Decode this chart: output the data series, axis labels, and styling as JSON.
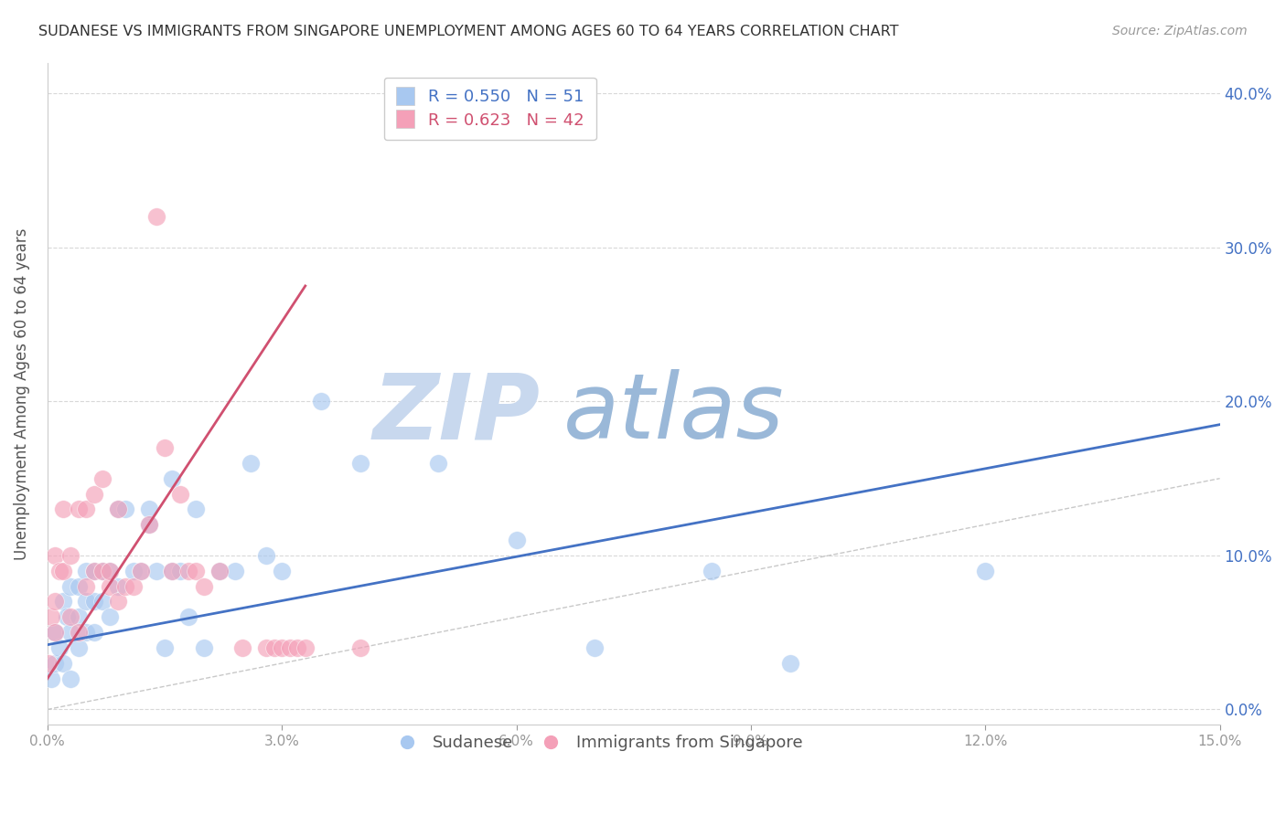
{
  "title": "SUDANESE VS IMMIGRANTS FROM SINGAPORE UNEMPLOYMENT AMONG AGES 60 TO 64 YEARS CORRELATION CHART",
  "source": "Source: ZipAtlas.com",
  "ylabel": "Unemployment Among Ages 60 to 64 years",
  "xlim": [
    0.0,
    0.15
  ],
  "ylim": [
    -0.01,
    0.42
  ],
  "xticks": [
    0.0,
    0.03,
    0.06,
    0.09,
    0.12,
    0.15
  ],
  "xticklabels": [
    "0.0%",
    "3.0%",
    "6.0%",
    "9.0%",
    "12.0%",
    "15.0%"
  ],
  "yticks": [
    0.0,
    0.1,
    0.2,
    0.3,
    0.4
  ],
  "yticklabels": [
    "0.0%",
    "10.0%",
    "20.0%",
    "30.0%",
    "40.0%"
  ],
  "blue_R": 0.55,
  "blue_N": 51,
  "pink_R": 0.623,
  "pink_N": 42,
  "blue_color": "#a8c8f0",
  "pink_color": "#f4a0b8",
  "blue_line_color": "#4472c4",
  "pink_line_color": "#d05070",
  "grid_color": "#d8d8d8",
  "watermark_ZIP": "ZIP",
  "watermark_atlas": "atlas",
  "watermark_color_ZIP": "#c8d8ee",
  "watermark_color_atlas": "#9ab8d8",
  "blue_scatter_x": [
    0.0005,
    0.001,
    0.001,
    0.0015,
    0.002,
    0.002,
    0.0025,
    0.003,
    0.003,
    0.003,
    0.004,
    0.004,
    0.004,
    0.005,
    0.005,
    0.005,
    0.006,
    0.006,
    0.006,
    0.007,
    0.007,
    0.008,
    0.008,
    0.009,
    0.009,
    0.01,
    0.011,
    0.012,
    0.013,
    0.014,
    0.015,
    0.016,
    0.017,
    0.018,
    0.019,
    0.02,
    0.022,
    0.024,
    0.026,
    0.028,
    0.03,
    0.035,
    0.04,
    0.05,
    0.06,
    0.07,
    0.085,
    0.095,
    0.12,
    0.016,
    0.013
  ],
  "blue_scatter_y": [
    0.02,
    0.03,
    0.05,
    0.04,
    0.03,
    0.07,
    0.06,
    0.02,
    0.05,
    0.08,
    0.04,
    0.06,
    0.08,
    0.05,
    0.07,
    0.09,
    0.05,
    0.07,
    0.09,
    0.07,
    0.09,
    0.06,
    0.09,
    0.08,
    0.13,
    0.13,
    0.09,
    0.09,
    0.12,
    0.09,
    0.04,
    0.09,
    0.09,
    0.06,
    0.13,
    0.04,
    0.09,
    0.09,
    0.16,
    0.1,
    0.09,
    0.2,
    0.16,
    0.16,
    0.11,
    0.04,
    0.09,
    0.03,
    0.09,
    0.15,
    0.13
  ],
  "pink_scatter_x": [
    0.0002,
    0.0005,
    0.001,
    0.001,
    0.001,
    0.0015,
    0.002,
    0.002,
    0.003,
    0.003,
    0.004,
    0.004,
    0.005,
    0.005,
    0.006,
    0.006,
    0.007,
    0.007,
    0.008,
    0.008,
    0.009,
    0.009,
    0.01,
    0.011,
    0.012,
    0.013,
    0.014,
    0.015,
    0.016,
    0.017,
    0.018,
    0.019,
    0.02,
    0.022,
    0.025,
    0.028,
    0.029,
    0.03,
    0.031,
    0.032,
    0.033,
    0.04
  ],
  "pink_scatter_y": [
    0.03,
    0.06,
    0.05,
    0.07,
    0.1,
    0.09,
    0.09,
    0.13,
    0.06,
    0.1,
    0.05,
    0.13,
    0.08,
    0.13,
    0.09,
    0.14,
    0.09,
    0.15,
    0.08,
    0.09,
    0.07,
    0.13,
    0.08,
    0.08,
    0.09,
    0.12,
    0.32,
    0.17,
    0.09,
    0.14,
    0.09,
    0.09,
    0.08,
    0.09,
    0.04,
    0.04,
    0.04,
    0.04,
    0.04,
    0.04,
    0.04,
    0.04
  ],
  "blue_trend_x": [
    0.0,
    0.15
  ],
  "blue_trend_y": [
    0.042,
    0.185
  ],
  "pink_trend_x": [
    0.0,
    0.033
  ],
  "pink_trend_y": [
    0.02,
    0.275
  ],
  "ref_line_x": [
    0.0,
    0.42
  ],
  "ref_line_y": [
    0.0,
    0.42
  ],
  "ref_line_xlim": 0.42
}
